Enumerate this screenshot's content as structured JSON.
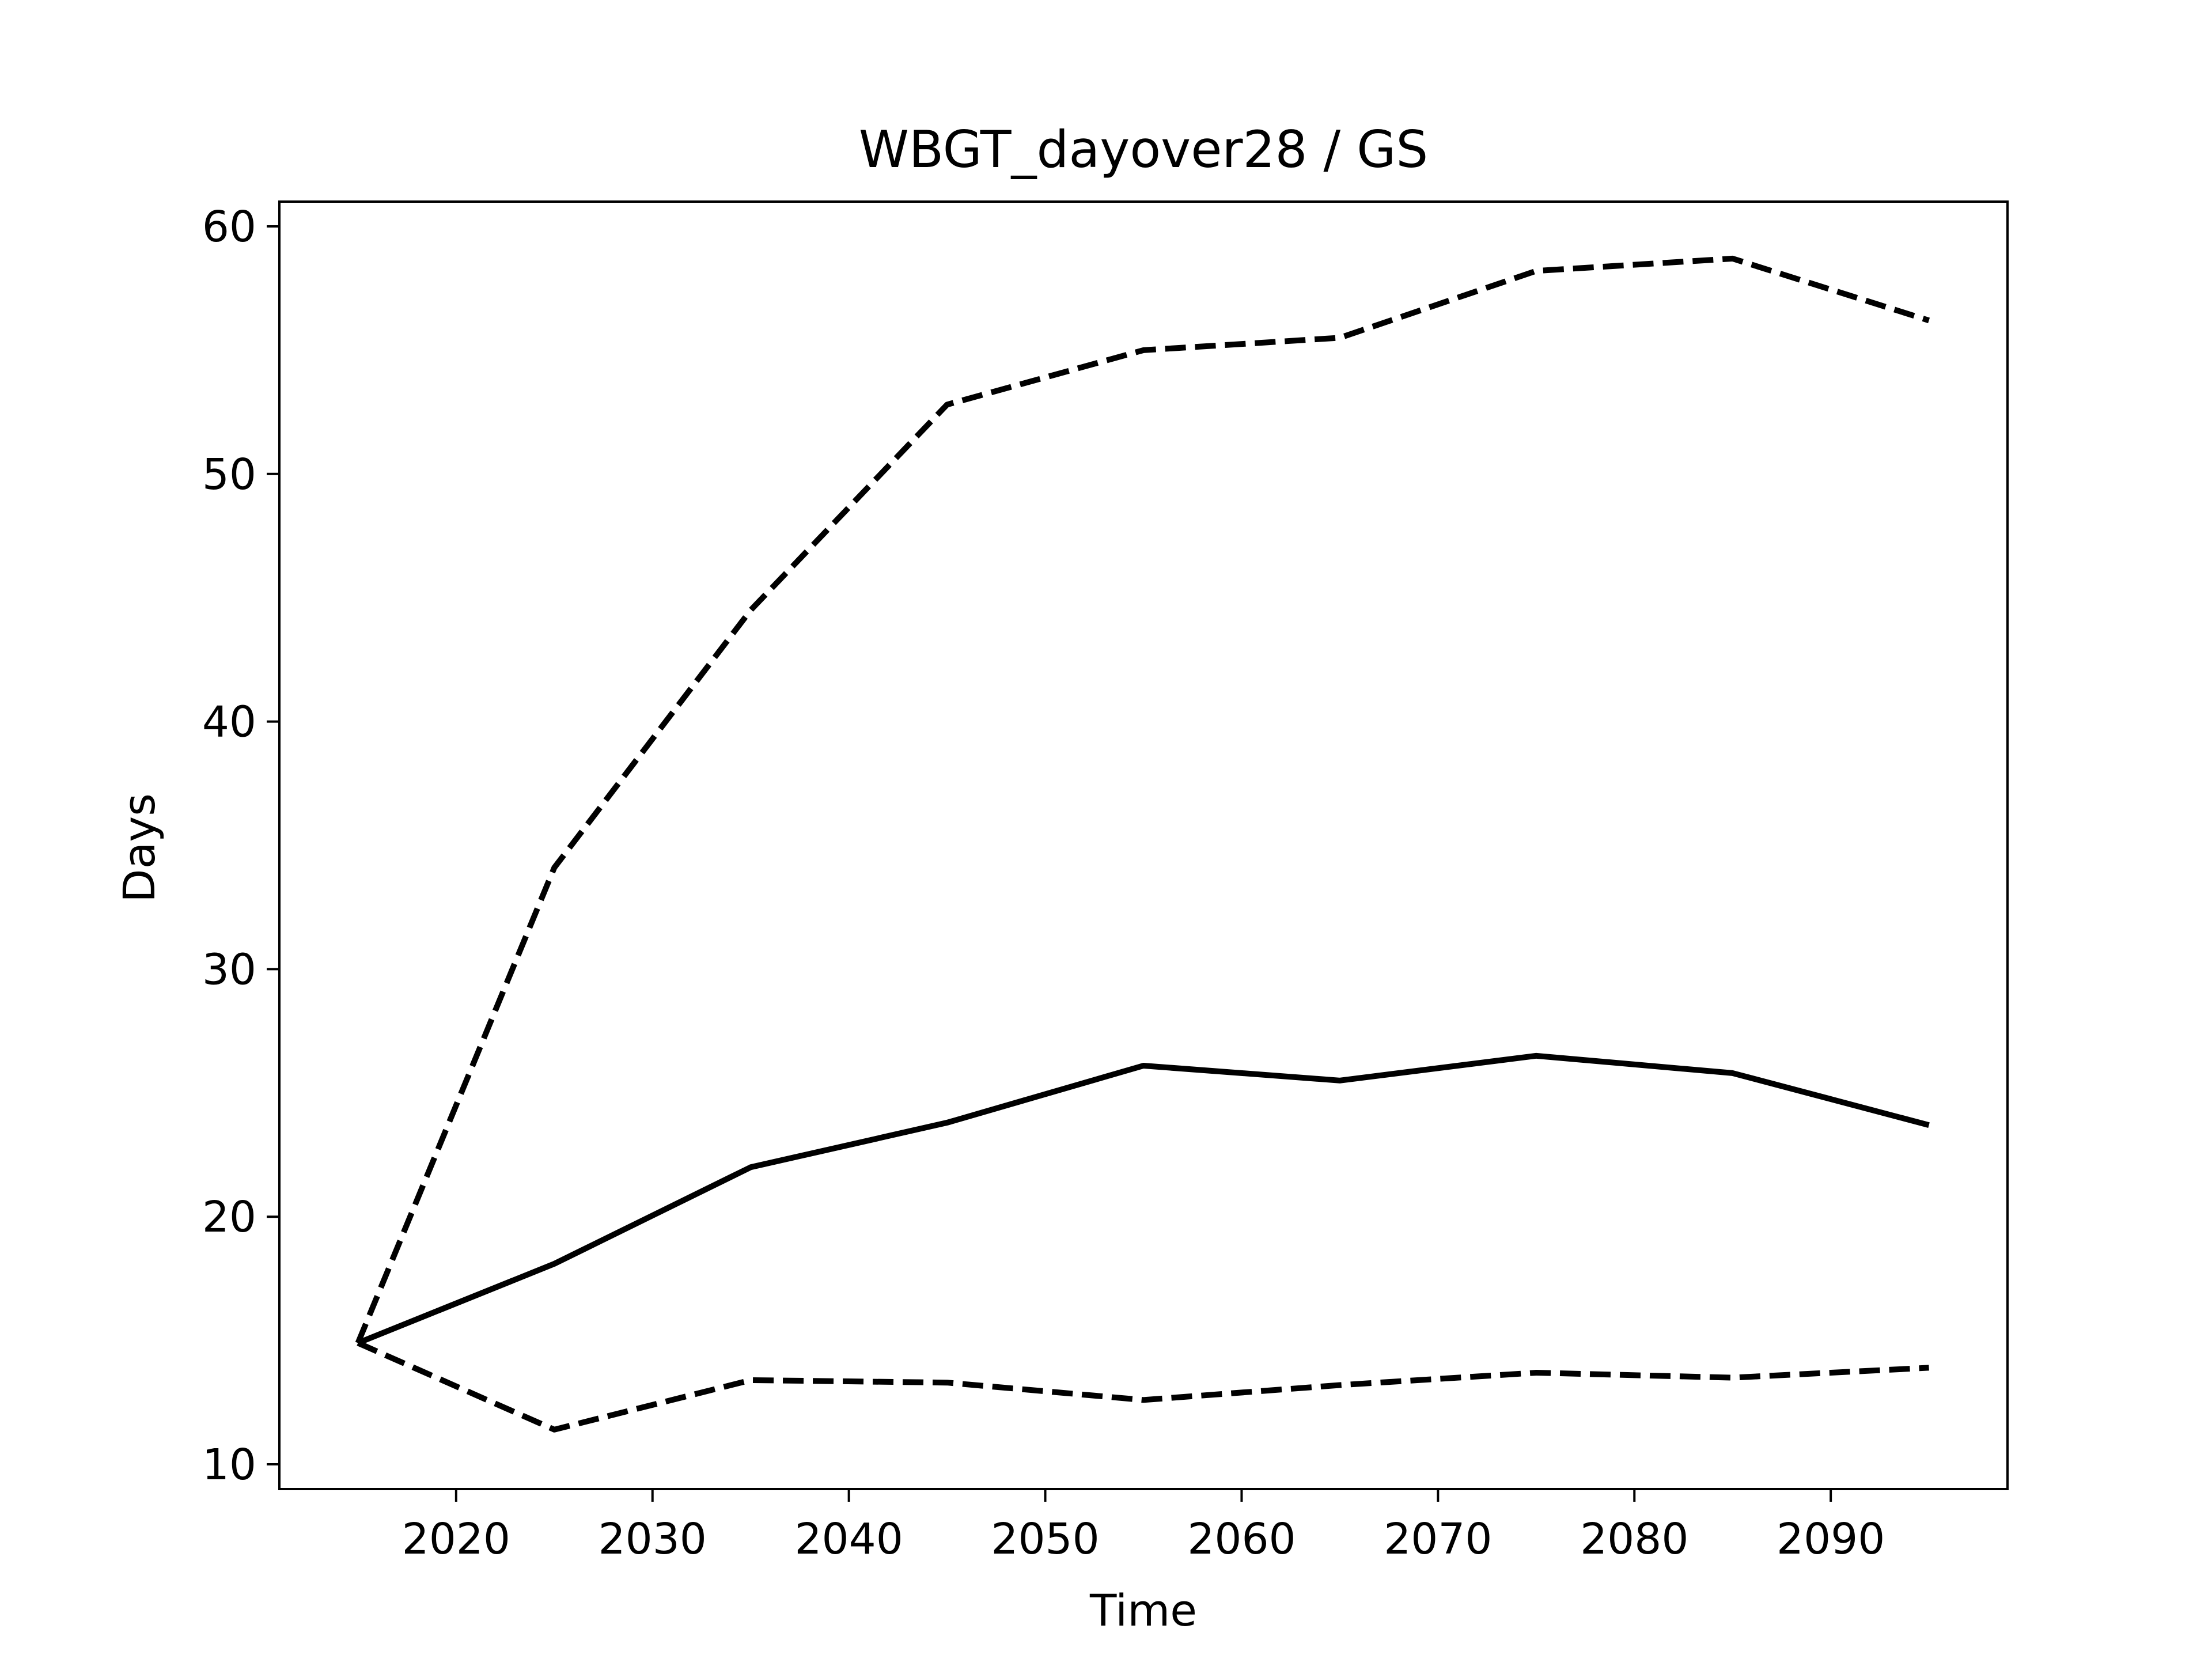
{
  "chart_data": {
    "type": "line",
    "title": "WBGT_dayover28 / GS",
    "xlabel": "Time",
    "ylabel": "Days",
    "xlim": [
      2011,
      2099
    ],
    "ylim": [
      9,
      61
    ],
    "xticks": [
      2020,
      2030,
      2040,
      2050,
      2060,
      2070,
      2080,
      2090
    ],
    "yticks": [
      10,
      20,
      30,
      40,
      50,
      60
    ],
    "grid": false,
    "x": [
      2015,
      2025,
      2035,
      2045,
      2055,
      2065,
      2075,
      2085,
      2095
    ],
    "series": [
      {
        "style": "dashed",
        "values": [
          14.9,
          34.1,
          44.5,
          52.8,
          55.0,
          55.5,
          58.2,
          58.7,
          56.2
        ]
      },
      {
        "style": "solid",
        "values": [
          14.9,
          18.1,
          22.0,
          23.8,
          26.1,
          25.5,
          26.5,
          25.8,
          23.7
        ]
      },
      {
        "style": "dashed",
        "values": [
          14.9,
          11.4,
          13.4,
          13.3,
          12.6,
          13.2,
          13.7,
          13.5,
          13.9
        ]
      }
    ],
    "colors": {
      "line": "#000000",
      "axes": "#000000",
      "background": "#ffffff"
    }
  }
}
